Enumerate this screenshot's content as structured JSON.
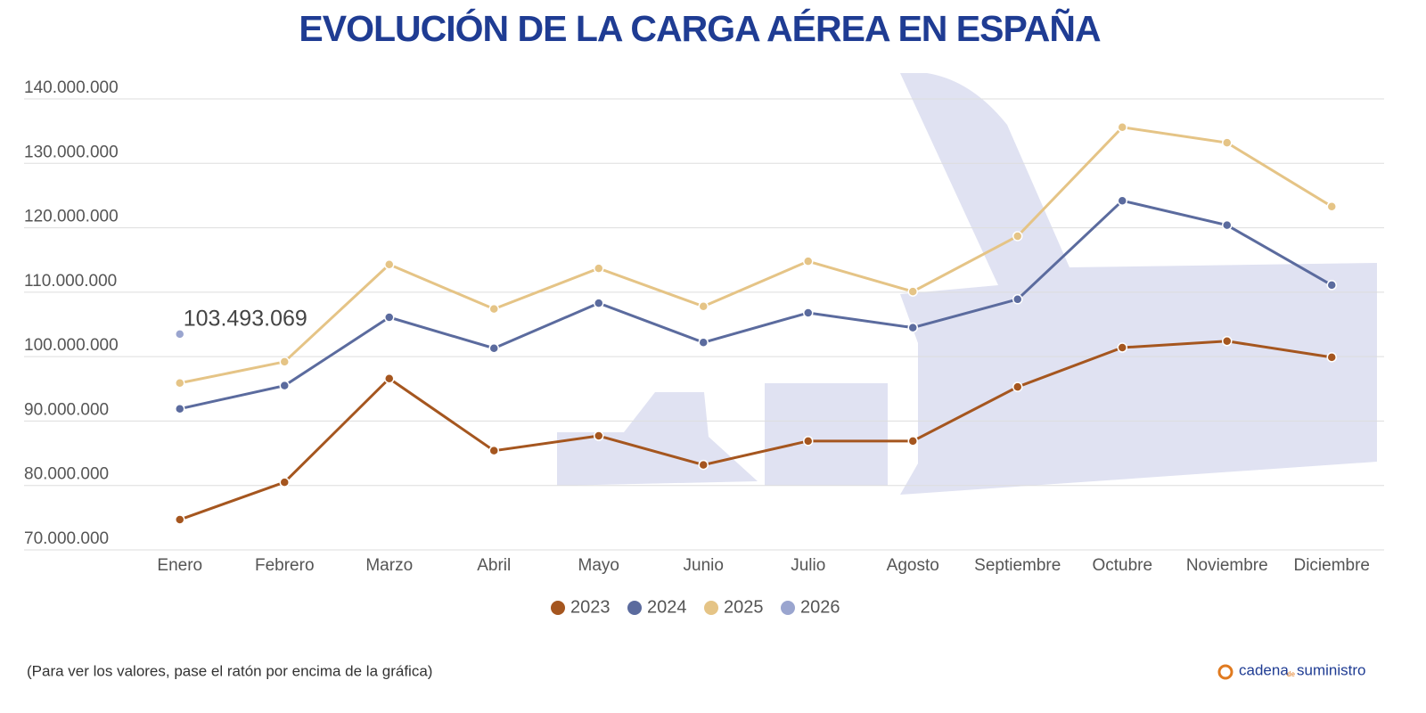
{
  "chart_data": {
    "type": "line",
    "title": "EVOLUCIÓN DE LA CARGA AÉREA EN ESPAÑA",
    "categories": [
      "Enero",
      "Febrero",
      "Marzo",
      "Abril",
      "Mayo",
      "Junio",
      "Julio",
      "Agosto",
      "Septiembre",
      "Octubre",
      "Noviembre",
      "Diciembre"
    ],
    "series": [
      {
        "name": "2023",
        "color": "#a5561f",
        "values": [
          74700000,
          80500000,
          96600000,
          85400000,
          87700000,
          83200000,
          86900000,
          86900000,
          95300000,
          101400000,
          102400000,
          99900000
        ]
      },
      {
        "name": "2024",
        "color": "#5b6b9e",
        "values": [
          91900000,
          95500000,
          106100000,
          101300000,
          108300000,
          102200000,
          106800000,
          104500000,
          108900000,
          124200000,
          120400000,
          111100000
        ]
      },
      {
        "name": "2025",
        "color": "#e5c486",
        "values": [
          95900000,
          99200000,
          114300000,
          107400000,
          113700000,
          107800000,
          114800000,
          110100000,
          118700000,
          135600000,
          133200000,
          123300000
        ]
      },
      {
        "name": "2026",
        "color": "#9aa5cf",
        "values": [
          103493069,
          null,
          null,
          null,
          null,
          null,
          null,
          null,
          null,
          null,
          null,
          null
        ],
        "value_labels": [
          "103.493.069",
          null,
          null,
          null,
          null,
          null,
          null,
          null,
          null,
          null,
          null,
          null
        ]
      }
    ],
    "ylim": [
      70000000,
      140000000
    ],
    "yticks": [
      {
        "value": 70000000,
        "label": "70.000.000"
      },
      {
        "value": 80000000,
        "label": "80.000.000"
      },
      {
        "value": 90000000,
        "label": "90.000.000"
      },
      {
        "value": 100000000,
        "label": "100.000.000"
      },
      {
        "value": 110000000,
        "label": "110.000.000"
      },
      {
        "value": 120000000,
        "label": "120.000.000"
      },
      {
        "value": 130000000,
        "label": "130.000.000"
      },
      {
        "value": 140000000,
        "label": "140.000.000"
      }
    ],
    "grid": true,
    "legend": "bottom"
  },
  "footer": {
    "note": "(Para ver los valores, pase el ratón por encima de la gráfica)",
    "logo": [
      "cadena",
      "de",
      "suministro"
    ]
  }
}
